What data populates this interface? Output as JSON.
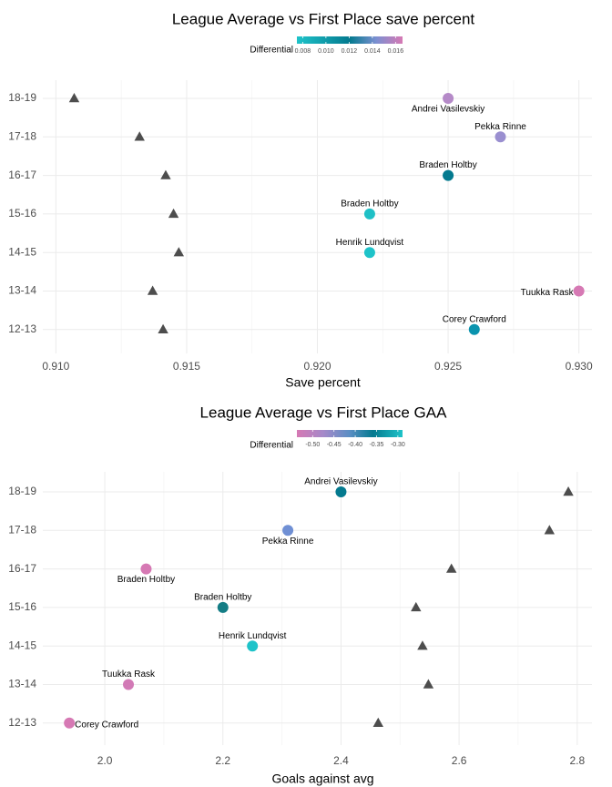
{
  "chart_data": [
    {
      "type": "scatter",
      "title": "League Average vs First Place save percent",
      "xlabel": "Save percent",
      "ylabel": "",
      "categories": [
        "12-13",
        "13-14",
        "14-15",
        "15-16",
        "16-17",
        "17-18",
        "18-19"
      ],
      "xlim": [
        0.9095,
        0.9305
      ],
      "x_ticks": [
        {
          "value": 0.91,
          "label": "0.910"
        },
        {
          "value": 0.915,
          "label": "0.915"
        },
        {
          "value": 0.92,
          "label": "0.920"
        },
        {
          "value": 0.925,
          "label": "0.925"
        },
        {
          "value": 0.93,
          "label": "0.930"
        }
      ],
      "grid": true,
      "legend": {
        "title": "Differential",
        "placement": "top",
        "domain": [
          0.0075,
          0.0166
        ],
        "ticks": [
          {
            "value": 0.008,
            "label": "0.008"
          },
          {
            "value": 0.01,
            "label": "0.010"
          },
          {
            "value": 0.012,
            "label": "0.012"
          },
          {
            "value": 0.014,
            "label": "0.014"
          },
          {
            "value": 0.016,
            "label": "0.016"
          }
        ],
        "stops": [
          {
            "at": 0,
            "color": "#1ec3c9"
          },
          {
            "at": 0.5,
            "color": "#047a8f"
          },
          {
            "at": 0.75,
            "color": "#7b8fd1"
          },
          {
            "at": 1,
            "color": "#d679b4"
          }
        ]
      },
      "league_average": {
        "marker": "triangle",
        "color": "#4d4d4d",
        "points": [
          {
            "season": "12-13",
            "x": 0.9141
          },
          {
            "season": "13-14",
            "x": 0.9137
          },
          {
            "season": "14-15",
            "x": 0.9147
          },
          {
            "season": "15-16",
            "x": 0.9145
          },
          {
            "season": "16-17",
            "x": 0.9142
          },
          {
            "season": "17-18",
            "x": 0.9132
          },
          {
            "season": "18-19",
            "x": 0.9107
          }
        ]
      },
      "first_place": {
        "marker": "circle",
        "points": [
          {
            "season": "12-13",
            "x": 0.926,
            "label": "Corey Crawford",
            "differential": 0.0119,
            "color": "#0a93ae",
            "label_pos": "above"
          },
          {
            "season": "13-14",
            "x": 0.93,
            "label": "Tuukka Rask",
            "differential": 0.0163,
            "color": "#d679b4",
            "label_pos": "left"
          },
          {
            "season": "14-15",
            "x": 0.922,
            "label": "Henrik Lundqvist",
            "differential": 0.0073,
            "color": "#1ec3c9",
            "label_pos": "above"
          },
          {
            "season": "15-16",
            "x": 0.922,
            "label": "Braden Holtby",
            "differential": 0.0075,
            "color": "#1fc0c6",
            "label_pos": "above"
          },
          {
            "season": "16-17",
            "x": 0.925,
            "label": "Braden Holtby",
            "differential": 0.0108,
            "color": "#047a8f",
            "label_pos": "above"
          },
          {
            "season": "17-18",
            "x": 0.927,
            "label": "Pekka Rinne",
            "differential": 0.0138,
            "color": "#9a8fd0",
            "label_pos": "above"
          },
          {
            "season": "18-19",
            "x": 0.925,
            "label": "Andrei Vasilevskiy",
            "differential": 0.0143,
            "color": "#b58ac8",
            "label_pos": "below"
          }
        ]
      }
    },
    {
      "type": "scatter",
      "title": "League Average vs First Place GAA",
      "xlabel": "Goals against avg",
      "ylabel": "",
      "categories": [
        "12-13",
        "13-14",
        "14-15",
        "15-16",
        "16-17",
        "17-18",
        "18-19"
      ],
      "xlim": [
        1.895,
        2.825
      ],
      "x_ticks": [
        {
          "value": 2.0,
          "label": "2.0"
        },
        {
          "value": 2.2,
          "label": "2.2"
        },
        {
          "value": 2.4,
          "label": "2.4"
        },
        {
          "value": 2.6,
          "label": "2.6"
        },
        {
          "value": 2.8,
          "label": "2.8"
        }
      ],
      "grid": true,
      "legend": {
        "title": "Differential",
        "placement": "top",
        "domain": [
          -0.537,
          -0.289
        ],
        "ticks": [
          {
            "value": -0.5,
            "label": "-0.50"
          },
          {
            "value": -0.45,
            "label": "-0.45"
          },
          {
            "value": -0.4,
            "label": "-0.40"
          },
          {
            "value": -0.35,
            "label": "-0.35"
          },
          {
            "value": -0.3,
            "label": "-0.30"
          }
        ],
        "stops": [
          {
            "at": 0,
            "color": "#d679b4"
          },
          {
            "at": 0.25,
            "color": "#a589c9"
          },
          {
            "at": 0.5,
            "color": "#5a8ec4"
          },
          {
            "at": 0.72,
            "color": "#047a8f"
          },
          {
            "at": 1,
            "color": "#1ec3c9"
          }
        ]
      },
      "league_average": {
        "marker": "triangle",
        "color": "#4d4d4d",
        "points": [
          {
            "season": "12-13",
            "x": 2.463
          },
          {
            "season": "13-14",
            "x": 2.548
          },
          {
            "season": "14-15",
            "x": 2.538
          },
          {
            "season": "15-16",
            "x": 2.527
          },
          {
            "season": "16-17",
            "x": 2.587
          },
          {
            "season": "17-18",
            "x": 2.753
          },
          {
            "season": "18-19",
            "x": 2.785
          }
        ]
      },
      "first_place": {
        "marker": "circle",
        "points": [
          {
            "season": "12-13",
            "x": 1.94,
            "label": "Corey Crawford",
            "differential": -0.523,
            "color": "#d679b4",
            "label_pos": "right"
          },
          {
            "season": "13-14",
            "x": 2.04,
            "label": "Tuukka Rask",
            "differential": -0.508,
            "color": "#d27ab6",
            "label_pos": "above"
          },
          {
            "season": "14-15",
            "x": 2.25,
            "label": "Henrik Lundqvist",
            "differential": -0.288,
            "color": "#1ec3c9",
            "label_pos": "above"
          },
          {
            "season": "15-16",
            "x": 2.2,
            "label": "Braden Holtby",
            "differential": -0.327,
            "color": "#147d85",
            "label_pos": "above"
          },
          {
            "season": "16-17",
            "x": 2.07,
            "label": "Braden Holtby",
            "differential": -0.517,
            "color": "#d679b4",
            "label_pos": "below"
          },
          {
            "season": "17-18",
            "x": 2.31,
            "label": "Pekka Rinne",
            "differential": -0.443,
            "color": "#6f8fd4",
            "label_pos": "below"
          },
          {
            "season": "18-19",
            "x": 2.4,
            "label": "Andrei Vasilevskiy",
            "differential": -0.385,
            "color": "#047a8f",
            "label_pos": "above"
          }
        ]
      }
    }
  ]
}
